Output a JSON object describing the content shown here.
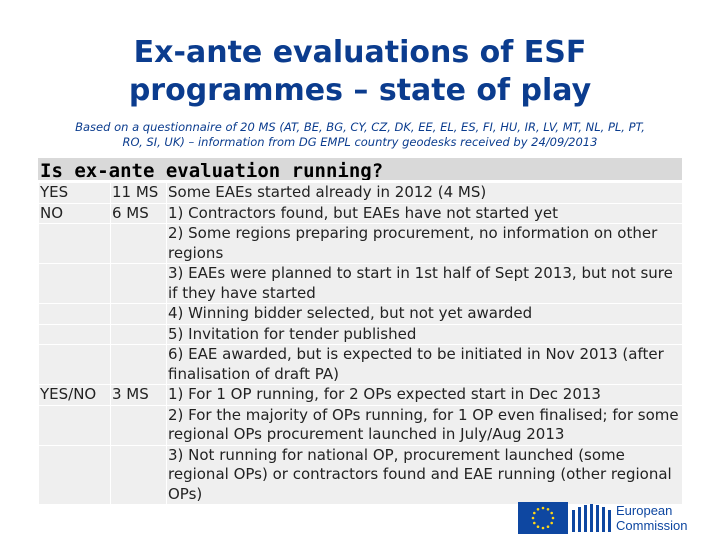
{
  "title_line1": "Ex-ante evaluations of ESF",
  "title_line2": "programmes – state of play",
  "subtitle_line1": "Based on a questionnaire of 20 MS (AT, BE, BG, CY, CZ, DK, EE, EL, ES, FI, HU, IR, LV, MT, NL, PL, PT,",
  "subtitle_line2": "RO, SI, UK) – information from DG EMPL country geodesks received by 24/09/2013",
  "question": "Is ex-ante evaluation running?",
  "rows": [
    {
      "answer": "YES",
      "count": "11 MS",
      "detail": "Some EAEs started already in 2012 (4 MS)"
    },
    {
      "answer": "NO",
      "count": "6 MS",
      "detail": "1) Contractors found, but EAEs have not started yet"
    },
    {
      "answer": "",
      "count": "",
      "detail": "2) Some regions preparing procurement, no information on other regions"
    },
    {
      "answer": "",
      "count": "",
      "detail": "3) EAEs were planned to start in 1st half of Sept 2013, but not sure if they have started"
    },
    {
      "answer": "",
      "count": "",
      "detail": "4) Winning bidder selected, but not yet awarded"
    },
    {
      "answer": "",
      "count": "",
      "detail": "5) Invitation for tender published"
    },
    {
      "answer": "",
      "count": "",
      "detail": "6) EAE awarded, but is expected to be initiated in Nov 2013 (after finalisation of draft PA)"
    },
    {
      "answer": "YES/NO",
      "count": "3 MS",
      "detail": "1) For 1 OP running, for 2 OPs expected start in Dec 2013"
    },
    {
      "answer": "",
      "count": "",
      "detail": "2) For the majority of OPs running, for 1 OP even finalised; for some regional OPs procurement launched in July/Aug 2013"
    },
    {
      "answer": "",
      "count": "",
      "detail": "3) Not running for national OP, procurement launched (some regional OPs) or contractors found and EAE running (other regional OPs)"
    }
  ],
  "logo_line1": "European",
  "logo_line2": "Commission",
  "colors": {
    "title": "#0b3c8e",
    "flag": "#0e47a1",
    "cell": "#efefef",
    "header": "#d9d9d9"
  }
}
